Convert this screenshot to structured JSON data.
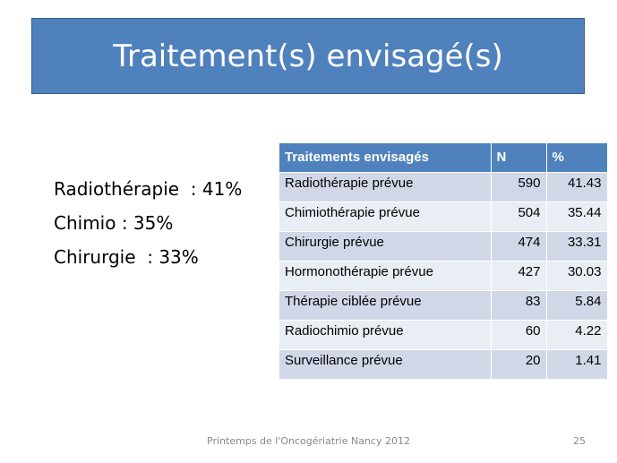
{
  "header": {
    "title": "Traitement(s) envisagé(s)"
  },
  "bullets": [
    "Radiothérapie  : 41%",
    "Chimio : 35%",
    "Chirurgie  : 33%"
  ],
  "table": {
    "headers": [
      "Traitements envisagés",
      "N",
      "%"
    ],
    "rows": [
      [
        "Radiothérapie prévue",
        590,
        41.43
      ],
      [
        "Chimiothérapie prévue",
        504,
        35.44
      ],
      [
        "Chirurgie prévue",
        474,
        33.31
      ],
      [
        "Hormonothérapie prévue",
        427,
        30.03
      ],
      [
        "Thérapie ciblée prévue",
        83,
        5.84
      ],
      [
        "Radiochimio prévue",
        60,
        4.22
      ],
      [
        "Surveillance prévue",
        20,
        1.41
      ]
    ]
  },
  "footer": {
    "text": "Printemps de l'Oncogériatrie Nancy 2012",
    "page": 25
  }
}
